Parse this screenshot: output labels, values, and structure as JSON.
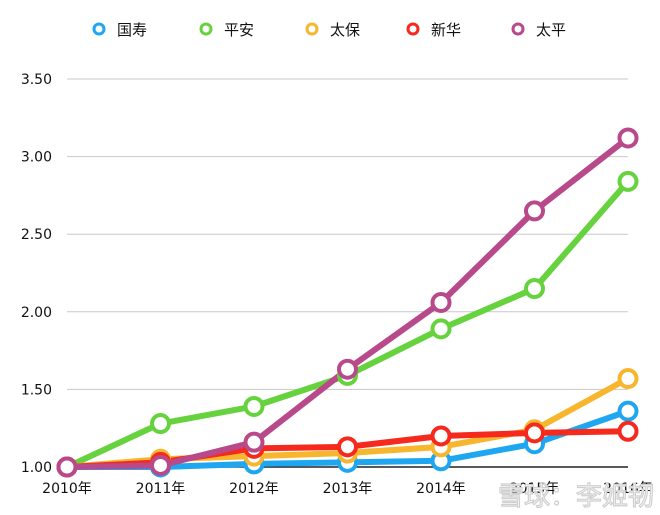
{
  "chart_data": {
    "type": "line",
    "title": "",
    "xlabel": "",
    "ylabel": "",
    "categories": [
      "2010年",
      "2011年",
      "2012年",
      "2013年",
      "2014年",
      "2015年",
      "2016年"
    ],
    "y_ticks": [
      "1.00",
      "1.50",
      "2.00",
      "2.50",
      "3.00",
      "3.50"
    ],
    "ylim": [
      1.0,
      3.5
    ],
    "grid": true,
    "legend_position": "top",
    "series": [
      {
        "name": "国寿",
        "color": "#1ea7f0",
        "values": [
          1.0,
          1.0,
          1.02,
          1.03,
          1.04,
          1.15,
          1.36
        ]
      },
      {
        "name": "平安",
        "color": "#66d23e",
        "values": [
          1.0,
          1.28,
          1.39,
          1.59,
          1.89,
          2.15,
          2.84
        ]
      },
      {
        "name": "太保",
        "color": "#f7b62d",
        "values": [
          1.0,
          1.05,
          1.07,
          1.09,
          1.13,
          1.24,
          1.57
        ]
      },
      {
        "name": "新华",
        "color": "#f5291c",
        "values": [
          1.0,
          1.03,
          1.12,
          1.13,
          1.2,
          1.22,
          1.23
        ]
      },
      {
        "name": "太平",
        "color": "#b8498a",
        "values": [
          1.0,
          1.01,
          1.16,
          1.63,
          2.06,
          2.65,
          3.12
        ]
      }
    ]
  },
  "watermark": "雪球：李姬韧"
}
